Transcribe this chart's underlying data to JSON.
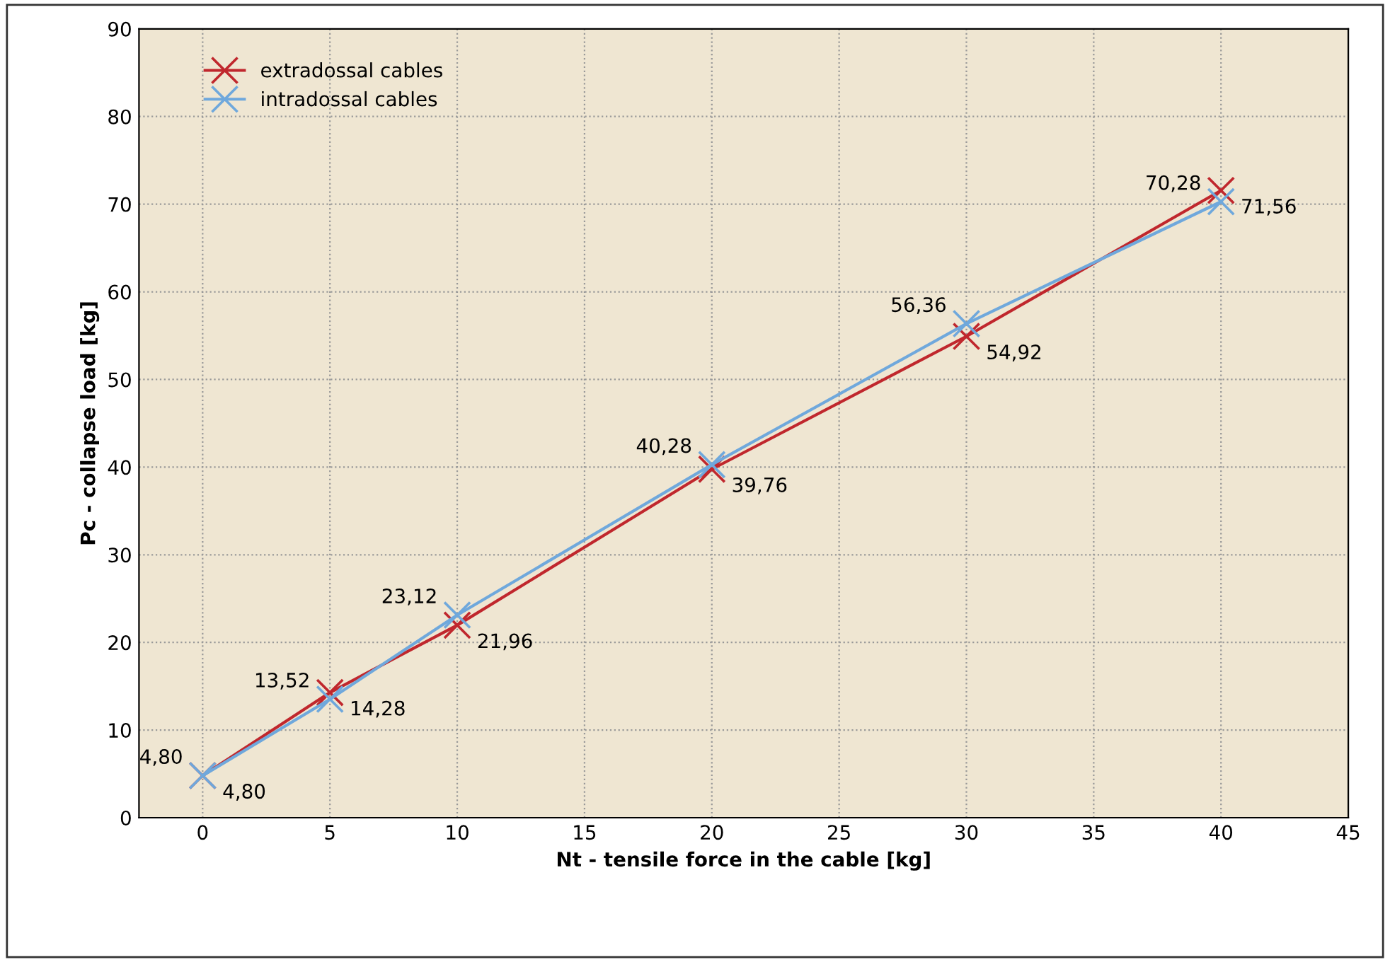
{
  "chart_data": {
    "type": "line",
    "xlabel": "Nt - tensile force in the cable [kg]",
    "ylabel": "Pc - collapse load [kg]",
    "x": [
      0,
      5,
      10,
      20,
      30,
      40
    ],
    "series": [
      {
        "name": "extradossal cables",
        "color": "#c0272d",
        "values": [
          4.8,
          14.28,
          21.96,
          39.76,
          54.92,
          71.56
        ],
        "value_labels": [
          "4,80",
          "14,28",
          "21,96",
          "39,76",
          "54,92",
          "71,56"
        ]
      },
      {
        "name": "intradossal cables",
        "color": "#6fa8dc",
        "values": [
          4.8,
          13.52,
          23.12,
          40.28,
          56.36,
          70.28
        ],
        "value_labels": [
          "4,80",
          "13,52",
          "23,12",
          "40,28",
          "56,36",
          "70,28"
        ]
      }
    ],
    "xlim": [
      -2.5,
      45
    ],
    "xticks": [
      0,
      5,
      10,
      15,
      20,
      25,
      30,
      35,
      40,
      45
    ],
    "ylim": [
      0,
      90
    ],
    "yticks": [
      0,
      10,
      20,
      30,
      40,
      50,
      60,
      70,
      80,
      90
    ],
    "grid": true,
    "legend": "top left",
    "marker": "cross",
    "line_style": "solid"
  }
}
